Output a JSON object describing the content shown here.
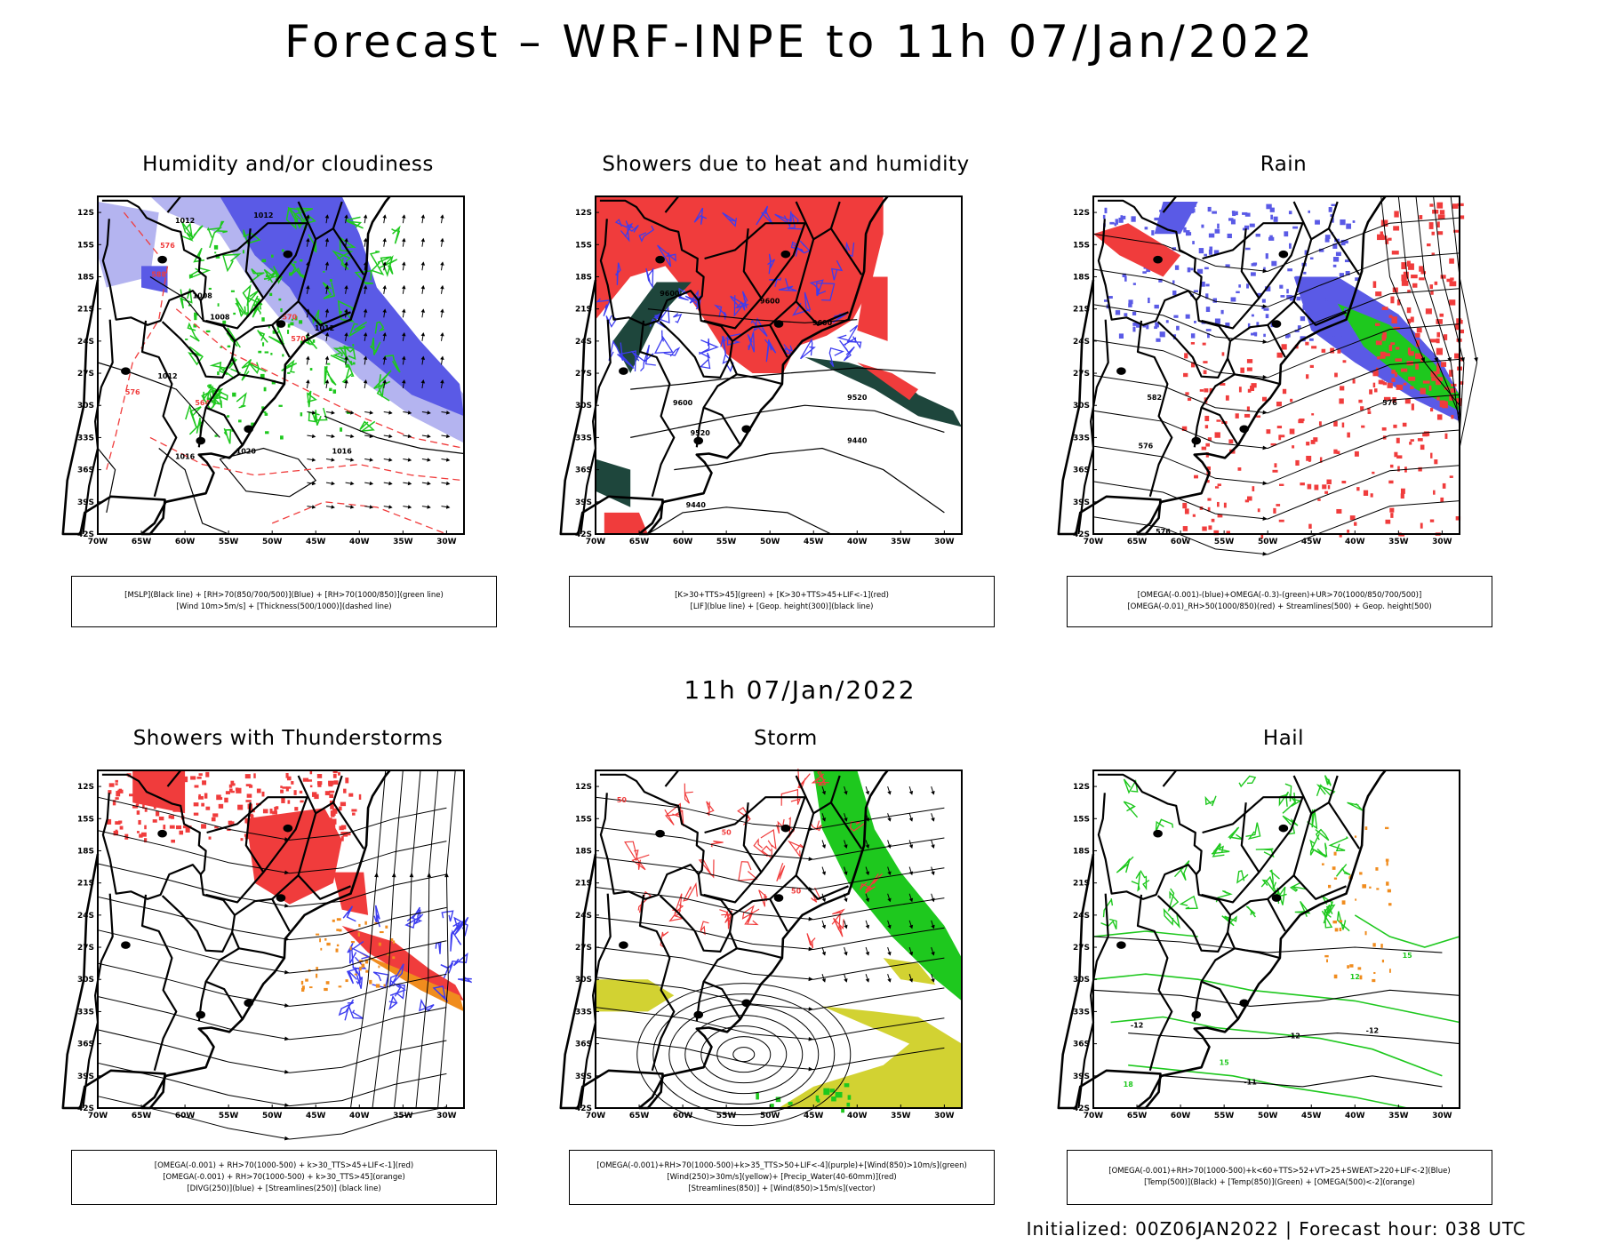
{
  "header": {
    "title": "Forecast – WRF-INPE to 11h 07/Jan/2022",
    "subtitle": "11h 07/Jan/2022",
    "footer": "Initialized: 00Z06JAN2022 | Forecast hour: 038 UTC"
  },
  "axes": {
    "lat_labels": [
      "12S",
      "15S",
      "18S",
      "21S",
      "24S",
      "27S",
      "30S",
      "33S",
      "36S",
      "39S",
      "42S"
    ],
    "lon_labels": [
      "70W",
      "65W",
      "60W",
      "55W",
      "50W",
      "45W",
      "40W",
      "35W",
      "30W"
    ]
  },
  "panels": [
    {
      "id": "humidity",
      "title": "Humidity and/or cloudiness",
      "caption": [
        "[MSLP](Black line) + [RH>70(850/700/500)](Blue) + [RH>70(1000/850)](green line)",
        "[Wind 10m>5m/s] + [Thickness(500/1000)](dashed line)"
      ],
      "contour_labels": [
        "1012",
        "1012",
        "1008",
        "1008",
        "1012",
        "1016",
        "1020",
        "1016",
        "1012",
        "576",
        "576",
        "570",
        "564",
        "570",
        "588"
      ]
    },
    {
      "id": "showers-heat",
      "title": "Showers due to heat and humidity",
      "caption": [
        "[K>30+TTS>45](green) + [K>30+TTS>45+LIF<-1](red)",
        "[LIF](blue line) + [Geop. height(300)](black line)"
      ],
      "contour_labels": [
        "9600",
        "9600",
        "9600",
        "9520",
        "9520",
        "9440",
        "9440",
        "9600"
      ]
    },
    {
      "id": "rain",
      "title": "Rain",
      "caption": [
        "[OMEGA(-0.001)-(blue)+OMEGA(-0.3)-(green)+UR>70(1000/850/700/500)]",
        "[OMEGA(-0.01)_RH>50(1000/850)(red) + Streamlines(500) + Geop. height(500)"
      ],
      "contour_labels": [
        "582",
        "576",
        "576",
        "576"
      ]
    },
    {
      "id": "thunderstorms",
      "title": "Showers with Thunderstorms",
      "caption": [
        "[OMEGA(-0.001) + RH>70(1000-500) + k>30_TTS>45+LIF<-1](red)",
        "[OMEGA(-0.001) + RH>70(1000-500) + k>30_TTS>45](orange)",
        "[DIVG(250)](blue) + [Streamlines(250)] (black line)"
      ],
      "contour_labels": []
    },
    {
      "id": "storm",
      "title": "Storm",
      "caption": [
        "[OMEGA(-0.001)+RH>70(1000-500)+k>35_TTS>50+LIF<-4](purple)+[Wind(850)>10m/s](green)",
        "[Wind(250)>30m/s](yellow)+ [Precip_Water(40-60mm)](red)",
        "[Streamlines(850)] + [Wind(850)>15m/s](vector)"
      ],
      "contour_labels": [
        "50",
        "50",
        "50"
      ]
    },
    {
      "id": "hail",
      "title": "Hail",
      "caption": [
        "[OMEGA(-0.001)+RH>70(1000-500)+k<60+TTS>52+VT>25+SWEAT>220+LIF<-2](Blue)",
        "[Temp(500)](Black) + [Temp(850)](Green) + [OMEGA(500)<-2](orange)"
      ],
      "contour_labels": [
        "-12",
        "-12",
        "-12",
        "-11",
        "12",
        "15",
        "15",
        "18"
      ]
    }
  ],
  "colors": {
    "rh_blue": "#5a5ae6",
    "rh_light": "#b4b4f0",
    "green": "#1ec81e",
    "red": "#f03c3c",
    "orange": "#f08c1e",
    "yellow": "#d2d232",
    "dark_teal": "#1e463c",
    "lif_blue": "#3c3cf0"
  }
}
